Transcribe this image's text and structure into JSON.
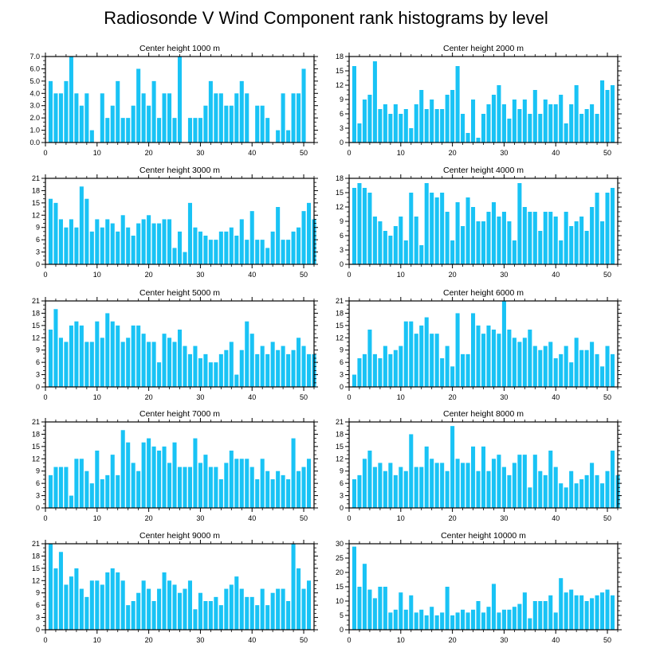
{
  "title": "Radiosonde V Wind Component rank histograms by level",
  "colors": {
    "bar": "#19c3f5",
    "axis": "#000000",
    "background": "#ffffff"
  },
  "chart_data": [
    {
      "type": "bar",
      "title": "Center height 1000 m",
      "x_start": 1,
      "xlim": [
        0,
        52
      ],
      "ylim": [
        0,
        7
      ],
      "x_ticks": [
        0,
        10,
        20,
        30,
        40,
        50
      ],
      "y_ticks": [
        "0.0",
        "1.0",
        "2.0",
        "3.0",
        "4.0",
        "5.0",
        "6.0",
        "7.0"
      ],
      "values": [
        5,
        4,
        4,
        5,
        7,
        4,
        3,
        4,
        1,
        0,
        4,
        2,
        3,
        5,
        2,
        2,
        3,
        6,
        4,
        3,
        5,
        2,
        4,
        4,
        2,
        7,
        0,
        2,
        2,
        2,
        3,
        5,
        4,
        4,
        3,
        3,
        4,
        5,
        4,
        0,
        3,
        3,
        2,
        0,
        1,
        4,
        1,
        4,
        4,
        6
      ]
    },
    {
      "type": "bar",
      "title": "Center height 2000 m",
      "x_start": 1,
      "xlim": [
        0,
        52
      ],
      "ylim": [
        0,
        18
      ],
      "x_ticks": [
        0,
        10,
        20,
        30,
        40,
        50
      ],
      "y_ticks": [
        "0",
        "3",
        "6",
        "9",
        "12",
        "15",
        "18"
      ],
      "values": [
        16,
        4,
        9,
        10,
        17,
        7,
        8,
        6,
        8,
        6,
        7,
        3,
        8,
        11,
        7,
        9,
        7,
        7,
        10,
        11,
        16,
        6,
        2,
        9,
        1,
        6,
        8,
        10,
        12,
        8,
        5,
        9,
        7,
        9,
        6,
        11,
        6,
        9,
        8,
        8,
        10,
        4,
        8,
        12,
        6,
        7,
        8,
        6,
        13,
        11,
        12
      ]
    },
    {
      "type": "bar",
      "title": "Center height 3000 m",
      "x_start": 1,
      "xlim": [
        0,
        52
      ],
      "ylim": [
        0,
        21
      ],
      "x_ticks": [
        0,
        10,
        20,
        30,
        40,
        50
      ],
      "y_ticks": [
        "0",
        "3",
        "6",
        "9",
        "12",
        "15",
        "18",
        "21"
      ],
      "values": [
        16,
        15,
        11,
        9,
        11,
        9,
        19,
        16,
        8,
        11,
        9,
        11,
        10,
        8,
        12,
        9,
        7,
        10,
        11,
        12,
        10,
        10,
        11,
        11,
        4,
        8,
        3,
        15,
        9,
        8,
        7,
        6,
        6,
        8,
        8,
        9,
        7,
        11,
        6,
        13,
        6,
        6,
        4,
        8,
        14,
        6,
        6,
        8,
        9,
        13,
        15,
        11
      ]
    },
    {
      "type": "bar",
      "title": "Center height 4000 m",
      "x_start": 1,
      "xlim": [
        0,
        52
      ],
      "ylim": [
        0,
        18
      ],
      "x_ticks": [
        0,
        10,
        20,
        30,
        40,
        50
      ],
      "y_ticks": [
        "0",
        "3",
        "6",
        "9",
        "12",
        "15",
        "18"
      ],
      "values": [
        16,
        17,
        16,
        15,
        10,
        9,
        7,
        6,
        8,
        10,
        5,
        15,
        10,
        4,
        17,
        15,
        14,
        15,
        11,
        5,
        13,
        8,
        14,
        12,
        9,
        9,
        11,
        13,
        10,
        11,
        9,
        5,
        17,
        12,
        11,
        11,
        7,
        11,
        11,
        10,
        5,
        11,
        8,
        9,
        10,
        7,
        12,
        15,
        9,
        15,
        16
      ]
    },
    {
      "type": "bar",
      "title": "Center height 5000 m",
      "x_start": 1,
      "xlim": [
        0,
        52
      ],
      "ylim": [
        0,
        21
      ],
      "x_ticks": [
        0,
        10,
        20,
        30,
        40,
        50
      ],
      "y_ticks": [
        "0",
        "3",
        "6",
        "9",
        "12",
        "15",
        "18",
        "21"
      ],
      "values": [
        14,
        19,
        12,
        11,
        15,
        16,
        15,
        11,
        11,
        16,
        12,
        18,
        16,
        15,
        11,
        12,
        15,
        15,
        13,
        11,
        11,
        6,
        13,
        12,
        11,
        14,
        10,
        8,
        10,
        7,
        8,
        6,
        6,
        8,
        9,
        11,
        3,
        9,
        16,
        13,
        8,
        10,
        8,
        11,
        9,
        10,
        8,
        9,
        12,
        10,
        8,
        8
      ]
    },
    {
      "type": "bar",
      "title": "Center height 6000 m",
      "x_start": 1,
      "xlim": [
        0,
        52
      ],
      "ylim": [
        0,
        21
      ],
      "x_ticks": [
        0,
        10,
        20,
        30,
        40,
        50
      ],
      "y_ticks": [
        "0",
        "3",
        "6",
        "9",
        "12",
        "15",
        "18",
        "21"
      ],
      "values": [
        3,
        7,
        8,
        14,
        8,
        7,
        10,
        8,
        9,
        10,
        16,
        16,
        13,
        15,
        17,
        13,
        13,
        7,
        10,
        5,
        18,
        8,
        8,
        18,
        15,
        13,
        15,
        14,
        13,
        21,
        14,
        12,
        11,
        12,
        14,
        10,
        9,
        10,
        11,
        7,
        8,
        10,
        6,
        12,
        9,
        9,
        11,
        8,
        5,
        10,
        8
      ]
    },
    {
      "type": "bar",
      "title": "Center height 7000 m",
      "x_start": 1,
      "xlim": [
        0,
        52
      ],
      "ylim": [
        0,
        21
      ],
      "x_ticks": [
        0,
        10,
        20,
        30,
        40,
        50
      ],
      "y_ticks": [
        "0",
        "3",
        "6",
        "9",
        "12",
        "15",
        "18",
        "21"
      ],
      "values": [
        8,
        10,
        10,
        10,
        3,
        12,
        12,
        9,
        6,
        14,
        7,
        8,
        13,
        8,
        19,
        16,
        11,
        9,
        16,
        17,
        15,
        14,
        15,
        11,
        16,
        10,
        10,
        10,
        17,
        11,
        13,
        10,
        10,
        7,
        11,
        14,
        12,
        12,
        12,
        10,
        7,
        12,
        9,
        7,
        9,
        8,
        7,
        17,
        9,
        10,
        12
      ]
    },
    {
      "type": "bar",
      "title": "Center height 8000 m",
      "x_start": 1,
      "xlim": [
        0,
        52
      ],
      "ylim": [
        0,
        21
      ],
      "x_ticks": [
        0,
        10,
        20,
        30,
        40,
        50
      ],
      "y_ticks": [
        "0",
        "3",
        "6",
        "9",
        "12",
        "15",
        "18",
        "21"
      ],
      "values": [
        7,
        8,
        12,
        14,
        10,
        11,
        9,
        11,
        8,
        10,
        9,
        18,
        10,
        10,
        15,
        12,
        11,
        11,
        9,
        20,
        12,
        11,
        11,
        15,
        9,
        15,
        9,
        12,
        13,
        10,
        8,
        11,
        13,
        13,
        5,
        13,
        9,
        8,
        14,
        10,
        6,
        5,
        9,
        6,
        7,
        8,
        11,
        8,
        6,
        9,
        14,
        8
      ]
    },
    {
      "type": "bar",
      "title": "Center height 9000 m",
      "x_start": 1,
      "xlim": [
        0,
        52
      ],
      "ylim": [
        0,
        21
      ],
      "x_ticks": [
        0,
        10,
        20,
        30,
        40,
        50
      ],
      "y_ticks": [
        "0",
        "3",
        "6",
        "9",
        "12",
        "15",
        "18",
        "21"
      ],
      "values": [
        21,
        15,
        19,
        11,
        13,
        15,
        10,
        8,
        12,
        12,
        11,
        14,
        15,
        14,
        12,
        6,
        7,
        9,
        12,
        10,
        7,
        10,
        14,
        12,
        11,
        9,
        10,
        12,
        5,
        9,
        7,
        7,
        8,
        6,
        10,
        11,
        13,
        10,
        8,
        8,
        6,
        10,
        6,
        9,
        10,
        10,
        7,
        21,
        15,
        10,
        12
      ]
    },
    {
      "type": "bar",
      "title": "Center height 10000 m",
      "x_start": 1,
      "xlim": [
        0,
        52
      ],
      "ylim": [
        0,
        30
      ],
      "x_ticks": [
        0,
        10,
        20,
        30,
        40,
        50
      ],
      "y_ticks": [
        "0",
        "5",
        "10",
        "15",
        "20",
        "25",
        "30"
      ],
      "values": [
        29,
        15,
        23,
        14,
        11,
        15,
        15,
        6,
        7,
        13,
        7,
        12,
        6,
        7,
        5,
        8,
        5,
        6,
        15,
        5,
        6,
        7,
        6,
        7,
        10,
        6,
        8,
        16,
        6,
        7,
        7,
        8,
        9,
        13,
        4,
        10,
        10,
        10,
        12,
        6,
        18,
        13,
        14,
        12,
        12,
        10,
        11,
        12,
        13,
        14,
        12
      ]
    }
  ]
}
